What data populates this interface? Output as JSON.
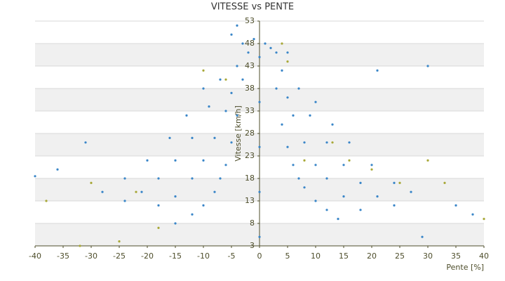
{
  "chart_data": {
    "type": "scatter",
    "title": "VITESSE vs PENTE",
    "x_label": "Pente [%]",
    "y_label": "Vitesse [km/h]",
    "xlim": [
      -40,
      40
    ],
    "xticks": [
      -40,
      -35,
      -30,
      -25,
      -20,
      -15,
      -10,
      -5,
      0,
      5,
      10,
      15,
      20,
      25,
      30,
      35,
      40
    ],
    "ylim": [
      3,
      53
    ],
    "yticks": [
      3,
      8,
      13,
      18,
      23,
      28,
      33,
      38,
      43,
      48,
      53
    ],
    "series": [
      {
        "color": "#3a86c8",
        "x": [
          1,
          2,
          3,
          4,
          5,
          6,
          7,
          8,
          10,
          12,
          14,
          3,
          4,
          5,
          6,
          8,
          10,
          12,
          15,
          18,
          5,
          7,
          9,
          12,
          15,
          18,
          21,
          24,
          10,
          13,
          16,
          20,
          24,
          27,
          -1,
          -2,
          -3,
          -4,
          -5,
          -6,
          -7,
          -8,
          -10,
          -12,
          -15,
          -3,
          -4,
          -5,
          -6,
          -8,
          -10,
          -12,
          -15,
          -18,
          -5,
          -7,
          -9,
          -12,
          -15,
          -18,
          -21,
          -24,
          -10,
          -13,
          -16,
          -20,
          -24,
          -28,
          -31,
          -36,
          -40,
          21,
          30,
          35,
          38,
          29,
          -4,
          0,
          0,
          0,
          0,
          0
        ],
        "values": [
          48,
          47,
          38,
          30,
          25,
          21,
          18,
          16,
          13,
          11,
          9,
          46,
          42,
          36,
          32,
          26,
          21,
          18,
          14,
          11,
          46,
          38,
          32,
          26,
          21,
          17,
          14,
          12,
          35,
          30,
          26,
          21,
          17,
          15,
          49,
          46,
          40,
          32,
          26,
          21,
          18,
          15,
          12,
          10,
          8,
          48,
          43,
          37,
          33,
          27,
          22,
          18,
          14,
          12,
          50,
          40,
          34,
          27,
          22,
          18,
          15,
          13,
          38,
          32,
          27,
          22,
          18,
          15,
          26,
          20,
          18.5,
          42,
          43,
          12,
          10,
          5,
          52,
          5,
          15,
          25,
          35,
          45
        ]
      },
      {
        "color": "#a8a838",
        "x": [
          -38,
          -32,
          -25,
          -30,
          -22,
          -18,
          -10,
          -6,
          4,
          5,
          8,
          13,
          16,
          20,
          25,
          30,
          33,
          40
        ],
        "values": [
          13,
          3,
          4,
          17,
          15,
          7,
          42,
          40,
          48,
          44,
          22,
          26,
          22,
          20,
          17,
          22,
          17,
          9
        ]
      }
    ]
  }
}
